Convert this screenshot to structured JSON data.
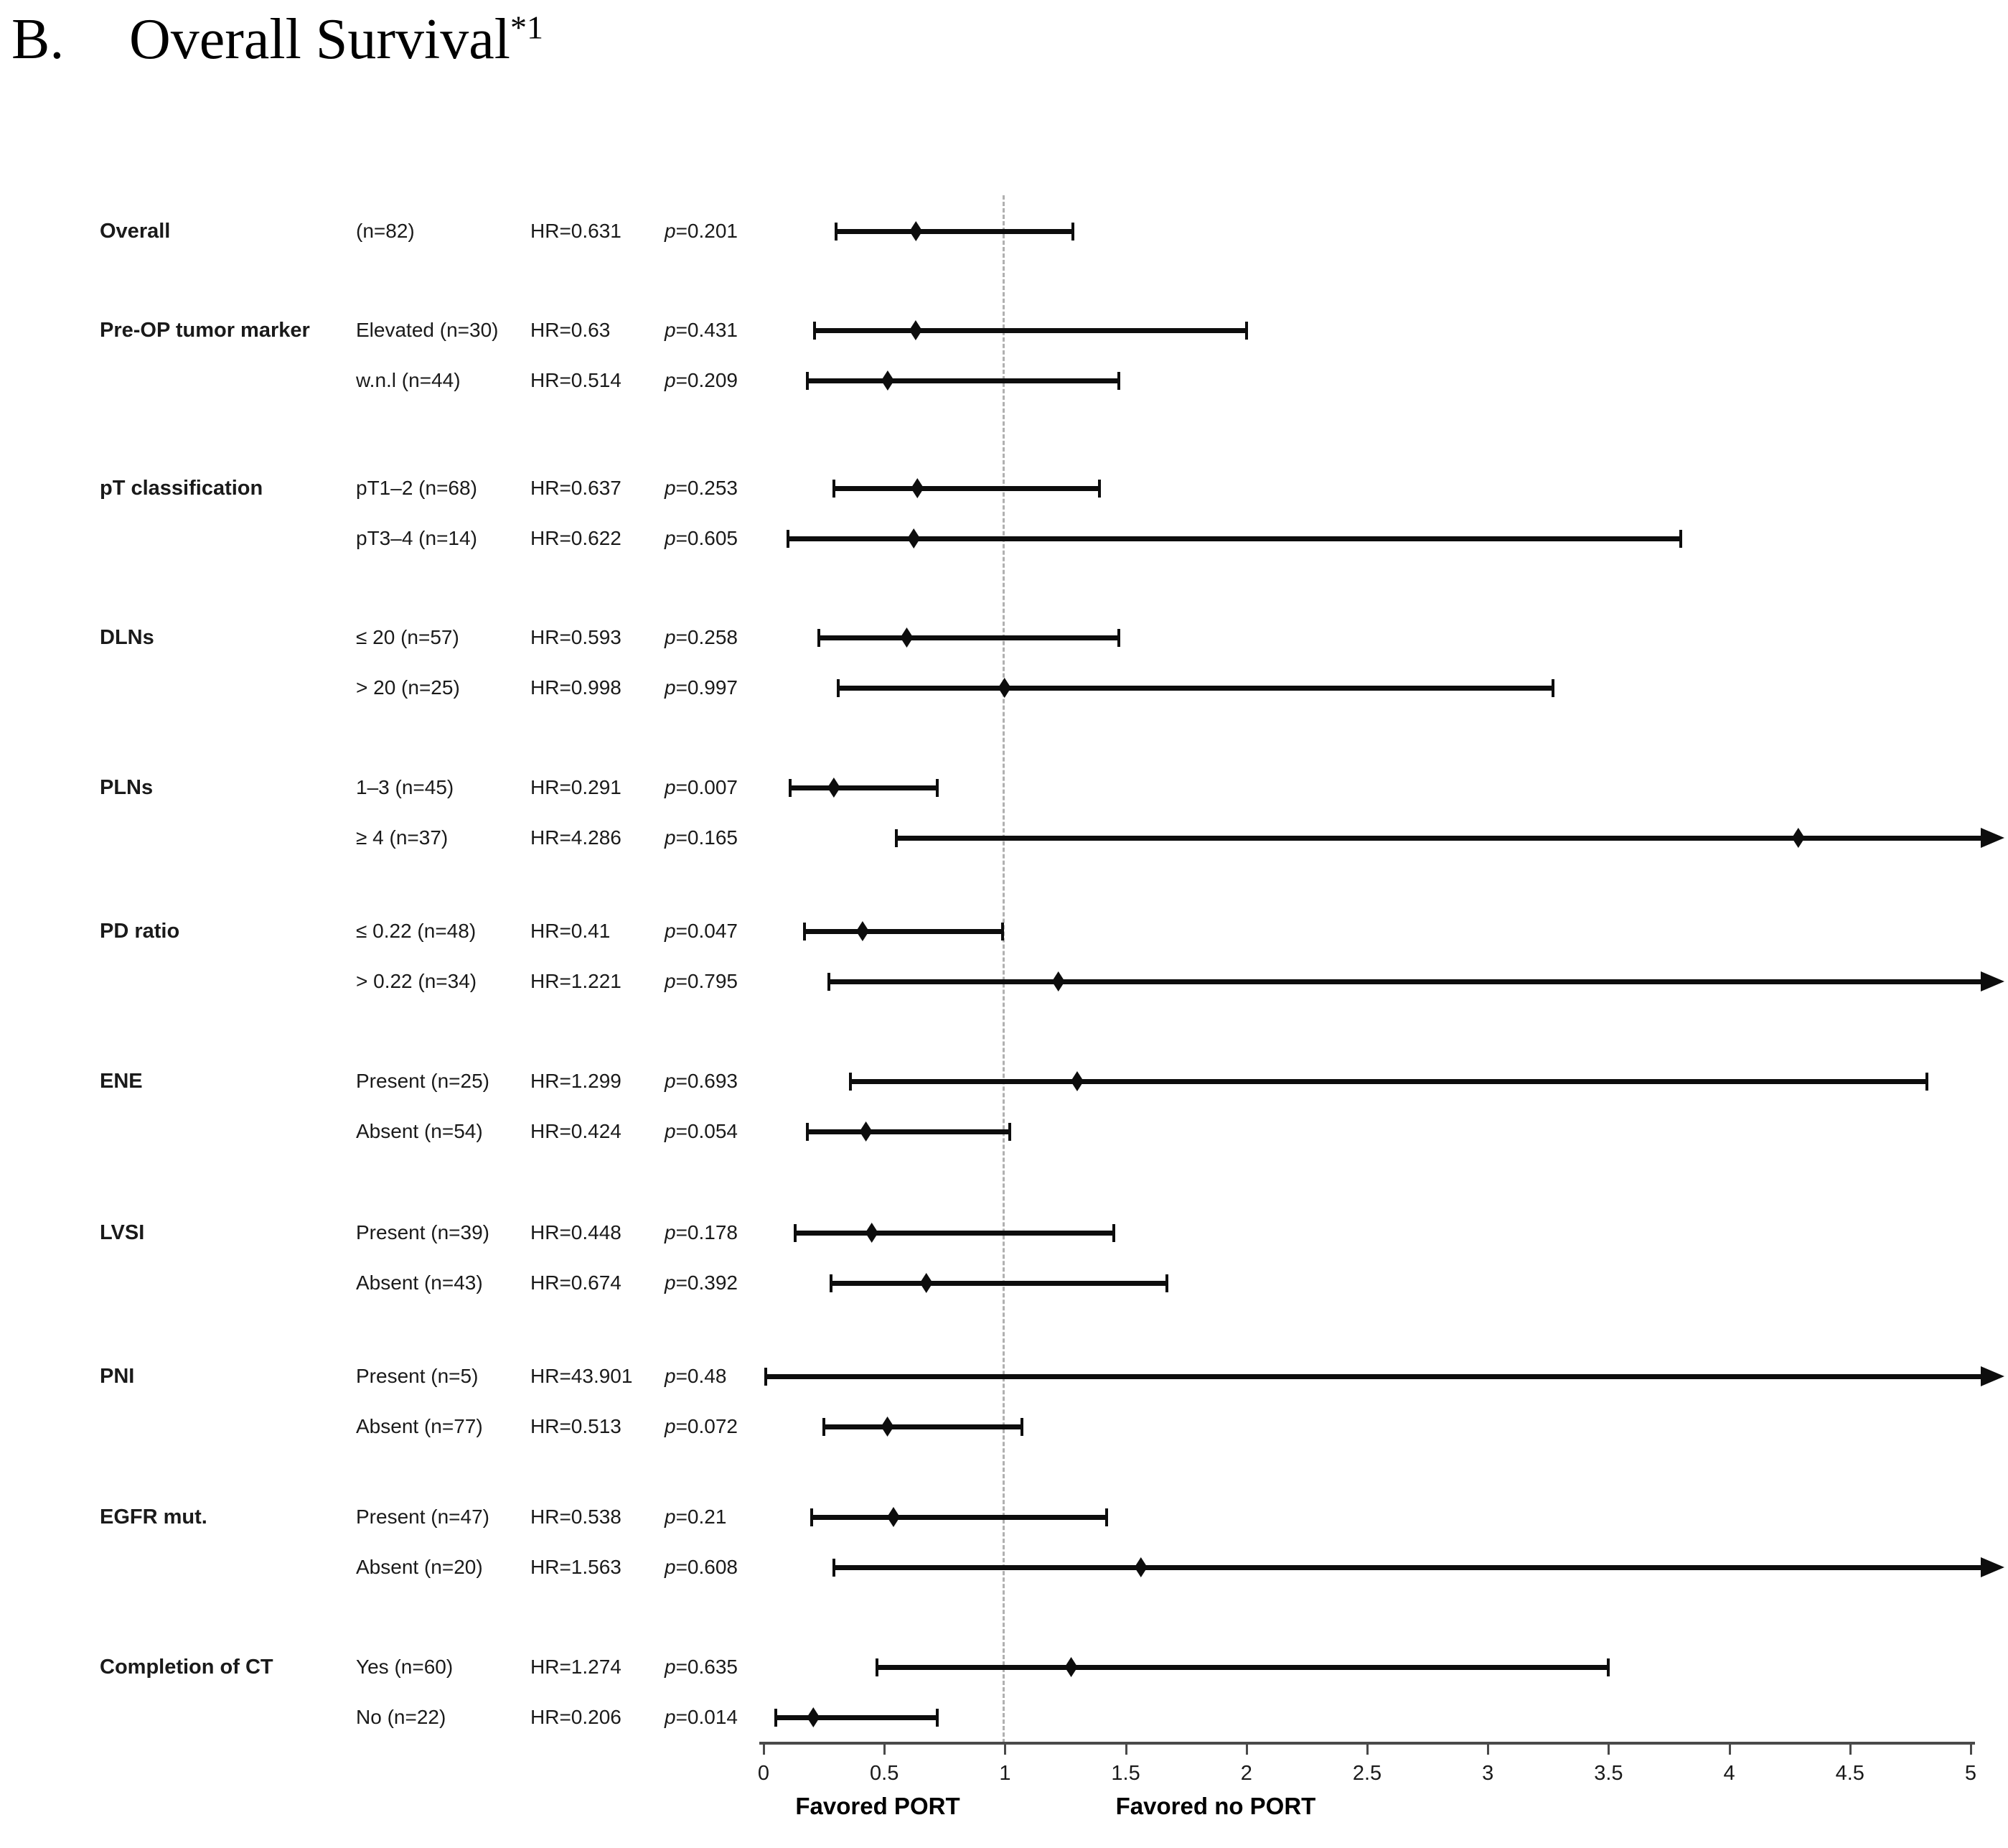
{
  "title": {
    "prefix": "B.",
    "text": "Overall Survival",
    "superscript": "*1"
  },
  "colors": {
    "line": "#0d0d0d",
    "dashed_reference": "#b0b0b0",
    "axis": "#4a4a4a",
    "text": "#1a1a1a"
  },
  "p_symbol": "p",
  "chart_data": {
    "type": "forest",
    "title": "B. Overall Survival*1",
    "x_axis": {
      "min": 0,
      "max": 5,
      "tick_values": [
        0,
        0.5,
        1,
        1.5,
        2,
        2.5,
        3,
        3.5,
        4,
        4.5,
        5
      ],
      "tick_labels": [
        "0",
        "0.5",
        "1",
        "1.5",
        "2",
        "2.5",
        "3",
        "3.5",
        "4",
        "4.5",
        "5"
      ],
      "reference_line_value": 1,
      "left_region_label": "Favored PORT",
      "right_region_label": "Favored no PORT"
    },
    "rows": [
      {
        "category": "Overall",
        "subgroup": "(n=82)",
        "hr_text": "HR=0.631",
        "p_rest": "=0.201",
        "hr": 0.631,
        "lo": 0.3,
        "hi": 1.28,
        "arrow": false
      },
      {
        "category": "Pre-OP tumor marker",
        "subgroup": "Elevated (n=30)",
        "hr_text": "HR=0.63",
        "p_rest": "=0.431",
        "hr": 0.63,
        "lo": 0.21,
        "hi": 2.0,
        "arrow": false
      },
      {
        "category": "",
        "subgroup": "w.n.l (n=44)",
        "hr_text": "HR=0.514",
        "p_rest": "=0.209",
        "hr": 0.514,
        "lo": 0.18,
        "hi": 1.47,
        "arrow": false
      },
      {
        "category": "pT classification",
        "subgroup": "pT1–2 (n=68)",
        "hr_text": "HR=0.637",
        "p_rest": "=0.253",
        "hr": 0.637,
        "lo": 0.29,
        "hi": 1.39,
        "arrow": false
      },
      {
        "category": "",
        "subgroup": "pT3–4 (n=14)",
        "hr_text": "HR=0.622",
        "p_rest": "=0.605",
        "hr": 0.622,
        "lo": 0.1,
        "hi": 3.8,
        "arrow": false
      },
      {
        "category": "DLNs",
        "subgroup": "≤ 20 (n=57)",
        "hr_text": "HR=0.593",
        "p_rest": "=0.258",
        "hr": 0.593,
        "lo": 0.23,
        "hi": 1.47,
        "arrow": false
      },
      {
        "category": "",
        "subgroup": "> 20 (n=25)",
        "hr_text": "HR=0.998",
        "p_rest": "=0.997",
        "hr": 0.998,
        "lo": 0.31,
        "hi": 3.27,
        "arrow": false
      },
      {
        "category": "PLNs",
        "subgroup": "1–3 (n=45)",
        "hr_text": "HR=0.291",
        "p_rest": "=0.007",
        "hr": 0.291,
        "lo": 0.11,
        "hi": 0.72,
        "arrow": false
      },
      {
        "category": "",
        "subgroup": "≥ 4 (n=37)",
        "hr_text": "HR=4.286",
        "p_rest": "=0.165",
        "hr": 4.286,
        "lo": 0.55,
        "hi": null,
        "arrow": true
      },
      {
        "category": "PD ratio",
        "subgroup": "≤ 0.22 (n=48)",
        "hr_text": "HR=0.41",
        "p_rest": "=0.047",
        "hr": 0.41,
        "lo": 0.17,
        "hi": 0.99,
        "arrow": false
      },
      {
        "category": "",
        "subgroup": "> 0.22 (n=34)",
        "hr_text": "HR=1.221",
        "p_rest": "=0.795",
        "hr": 1.221,
        "lo": 0.27,
        "hi": null,
        "arrow": true
      },
      {
        "category": "ENE",
        "subgroup": "Present (n=25)",
        "hr_text": "HR=1.299",
        "p_rest": "=0.693",
        "hr": 1.299,
        "lo": 0.36,
        "hi": 4.82,
        "arrow": false
      },
      {
        "category": "",
        "subgroup": "Absent (n=54)",
        "hr_text": "HR=0.424",
        "p_rest": "=0.054",
        "hr": 0.424,
        "lo": 0.18,
        "hi": 1.02,
        "arrow": false
      },
      {
        "category": "LVSI",
        "subgroup": "Present (n=39)",
        "hr_text": "HR=0.448",
        "p_rest": "=0.178",
        "hr": 0.448,
        "lo": 0.13,
        "hi": 1.45,
        "arrow": false
      },
      {
        "category": "",
        "subgroup": "Absent (n=43)",
        "hr_text": "HR=0.674",
        "p_rest": "=0.392",
        "hr": 0.674,
        "lo": 0.28,
        "hi": 1.67,
        "arrow": false
      },
      {
        "category": "PNI",
        "subgroup": "Present (n=5)",
        "hr_text": "HR=43.901",
        "p_rest": "=0.48",
        "hr": null,
        "lo": 0.01,
        "hi": null,
        "arrow": true
      },
      {
        "category": "",
        "subgroup": "Absent (n=77)",
        "hr_text": "HR=0.513",
        "p_rest": "=0.072",
        "hr": 0.513,
        "lo": 0.25,
        "hi": 1.07,
        "arrow": false
      },
      {
        "category": "EGFR mut.",
        "subgroup": "Present (n=47)",
        "hr_text": "HR=0.538",
        "p_rest": "=0.21",
        "hr": 0.538,
        "lo": 0.2,
        "hi": 1.42,
        "arrow": false
      },
      {
        "category": "",
        "subgroup": "Absent (n=20)",
        "hr_text": "HR=1.563",
        "p_rest": "=0.608",
        "hr": 1.563,
        "lo": 0.29,
        "hi": null,
        "arrow": true
      },
      {
        "category": "Completion of CT",
        "subgroup": "Yes (n=60)",
        "hr_text": "HR=1.274",
        "p_rest": "=0.635",
        "hr": 1.274,
        "lo": 0.47,
        "hi": 3.5,
        "arrow": false
      },
      {
        "category": "",
        "subgroup": "No (n=22)",
        "hr_text": "HR=0.206",
        "p_rest": "=0.014",
        "hr": 0.206,
        "lo": 0.05,
        "hi": 0.72,
        "arrow": false
      }
    ]
  }
}
